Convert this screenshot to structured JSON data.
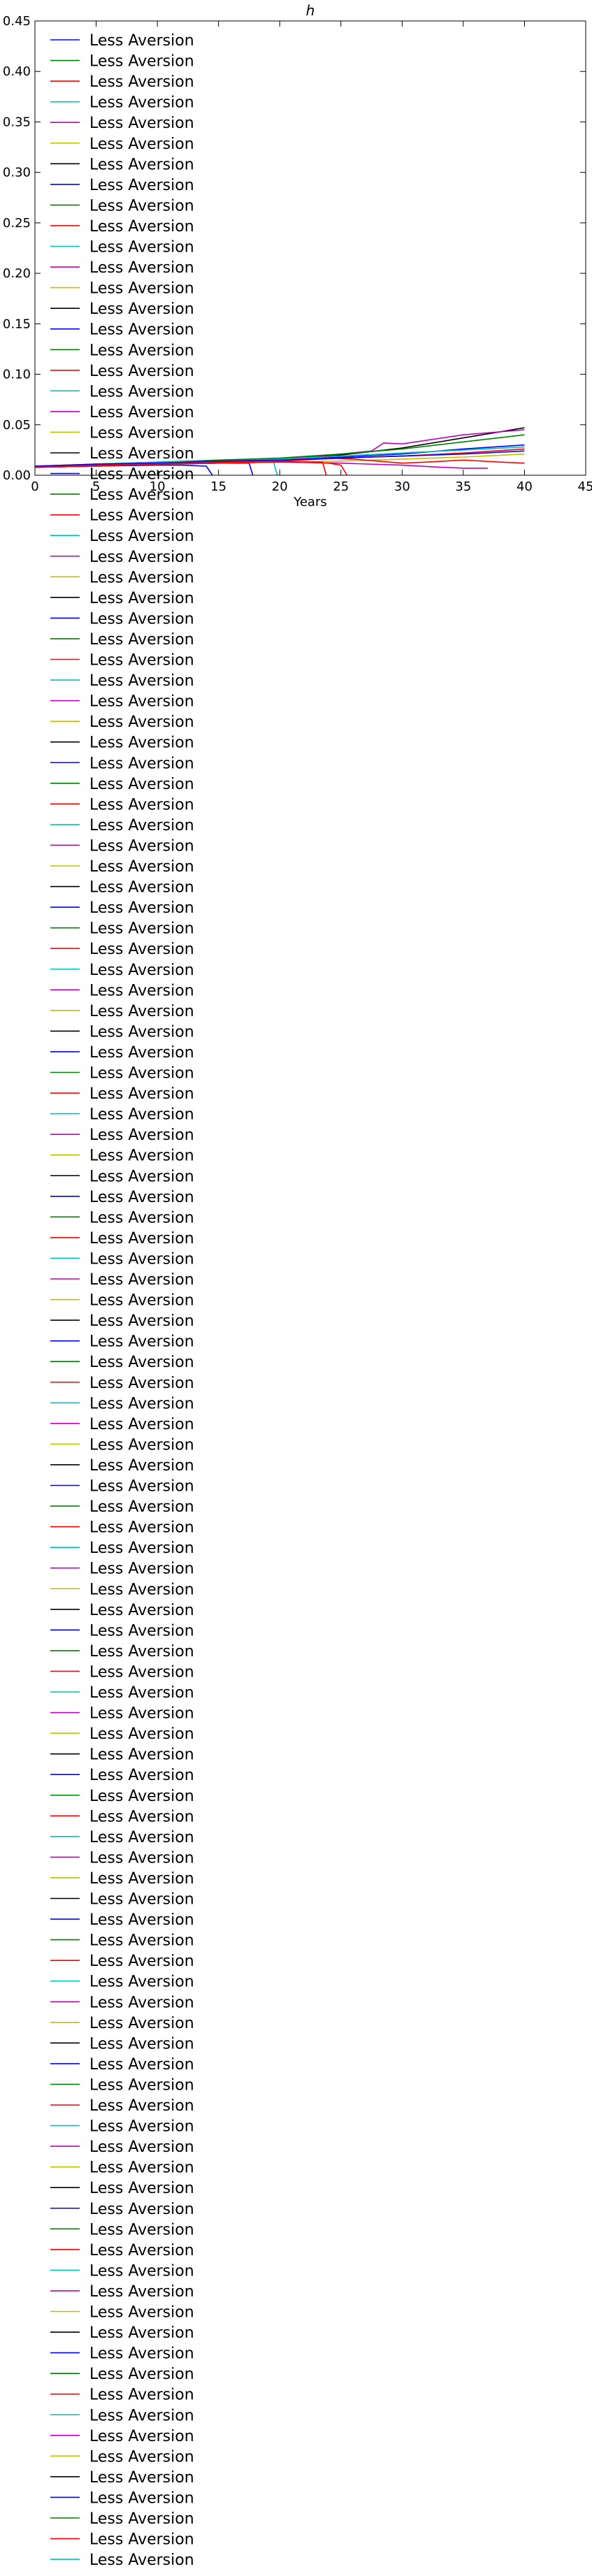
{
  "chart_data": {
    "type": "line",
    "title": "h",
    "xlabel": "Years",
    "ylabel": "",
    "xlim": [
      0,
      45
    ],
    "ylim": [
      0,
      0.45
    ],
    "xticks": [
      "0",
      "5",
      "10",
      "15",
      "20",
      "25",
      "30",
      "35",
      "40",
      "45"
    ],
    "yticks": [
      "0.00",
      "0.05",
      "0.10",
      "0.15",
      "0.20",
      "0.25",
      "0.30",
      "0.35",
      "0.40",
      "0.45"
    ],
    "grid": false,
    "legend_position": "upper-left",
    "legend_color_cycle": [
      "#0000ff",
      "#008000",
      "#ff0000",
      "#00bfbf",
      "#bf00bf",
      "#bfbf00",
      "#000000"
    ],
    "legend_entries": [
      "Less Aversion",
      "Less Aversion",
      "Less Aversion",
      "Less Aversion",
      "Less Aversion",
      "Less Aversion",
      "Less Aversion",
      "Less Aversion",
      "Less Aversion",
      "Less Aversion",
      "Less Aversion",
      "Less Aversion",
      "Less Aversion",
      "Less Aversion",
      "Less Aversion",
      "Less Aversion",
      "Less Aversion",
      "Less Aversion",
      "Less Aversion",
      "Less Aversion",
      "Less Aversion",
      "Less Aversion",
      "Less Aversion",
      "Less Aversion",
      "Less Aversion",
      "Less Aversion",
      "Less Aversion",
      "Less Aversion",
      "Less Aversion",
      "Less Aversion",
      "Less Aversion",
      "Less Aversion",
      "Less Aversion",
      "Less Aversion",
      "Less Aversion",
      "Less Aversion",
      "Less Aversion",
      "Less Aversion",
      "Less Aversion",
      "Less Aversion",
      "Less Aversion",
      "Less Aversion",
      "Less Aversion",
      "Less Aversion",
      "Less Aversion",
      "Less Aversion",
      "Less Aversion",
      "Less Aversion",
      "Less Aversion",
      "Less Aversion",
      "Less Aversion",
      "Less Aversion",
      "Less Aversion",
      "Less Aversion",
      "Less Aversion",
      "Less Aversion",
      "Less Aversion",
      "Less Aversion",
      "Less Aversion",
      "Less Aversion",
      "Less Aversion",
      "Less Aversion",
      "Less Aversion",
      "Less Aversion",
      "Less Aversion",
      "Less Aversion",
      "Less Aversion",
      "Less Aversion",
      "Less Aversion",
      "Less Aversion",
      "Less Aversion",
      "Less Aversion",
      "Less Aversion",
      "Less Aversion",
      "Less Aversion",
      "Less Aversion",
      "Less Aversion",
      "Less Aversion",
      "Less Aversion",
      "Less Aversion",
      "Less Aversion",
      "Less Aversion",
      "Less Aversion",
      "Less Aversion",
      "Less Aversion",
      "Less Aversion",
      "Less Aversion",
      "Less Aversion",
      "Less Aversion",
      "Less Aversion",
      "Less Aversion",
      "Less Aversion",
      "Less Aversion",
      "Less Aversion",
      "Less Aversion",
      "Less Aversion",
      "Less Aversion",
      "Less Aversion",
      "Less Aversion",
      "Less Aversion",
      "Less Aversion",
      "Less Aversion",
      "Less Aversion",
      "Less Aversion",
      "Less Aversion",
      "Less Aversion",
      "Less Aversion",
      "Less Aversion",
      "Less Aversion",
      "Less Aversion",
      "Less Aversion",
      "Less Aversion",
      "Less Aversion",
      "Less Aversion",
      "Less Aversion",
      "Less Aversion",
      "Less Aversion",
      "Less Aversion",
      "Less Aversion",
      "Less Aversion",
      "Less Aversion",
      "Less Aversion",
      "Less Aversion",
      "Less Aversion",
      "Less Aversion"
    ],
    "series": [
      {
        "color": "#000000",
        "x": [
          0,
          5,
          10,
          15,
          20,
          25,
          30,
          35,
          40
        ],
        "y": [
          0.008,
          0.01,
          0.012,
          0.014,
          0.016,
          0.02,
          0.027,
          0.037,
          0.047
        ]
      },
      {
        "color": "#bf00bf",
        "x": [
          0,
          5,
          10,
          15,
          20,
          25,
          27.5,
          28.5,
          30,
          35,
          40
        ],
        "y": [
          0.008,
          0.01,
          0.012,
          0.014,
          0.016,
          0.021,
          0.024,
          0.032,
          0.031,
          0.04,
          0.045
        ]
      },
      {
        "color": "#008000",
        "x": [
          0,
          5,
          10,
          15,
          20,
          25,
          30,
          35,
          40
        ],
        "y": [
          0.009,
          0.011,
          0.013,
          0.015,
          0.017,
          0.021,
          0.026,
          0.033,
          0.04
        ]
      },
      {
        "color": "#0000ff",
        "x": [
          0,
          5,
          10,
          15,
          20,
          25,
          30,
          35,
          40
        ],
        "y": [
          0.008,
          0.01,
          0.012,
          0.013,
          0.015,
          0.018,
          0.021,
          0.026,
          0.03
        ]
      },
      {
        "color": "#ff0000",
        "x": [
          0,
          5,
          10,
          15,
          20,
          25,
          30,
          35,
          40
        ],
        "y": [
          0.008,
          0.009,
          0.011,
          0.013,
          0.014,
          0.017,
          0.019,
          0.022,
          0.026
        ]
      },
      {
        "color": "#00bfbf",
        "x": [
          0,
          5,
          10,
          15,
          20,
          25,
          30,
          35,
          40
        ],
        "y": [
          0.009,
          0.011,
          0.013,
          0.014,
          0.016,
          0.019,
          0.022,
          0.025,
          0.028
        ]
      },
      {
        "color": "#bfbf00",
        "x": [
          0,
          5,
          10,
          15,
          20,
          25,
          30,
          35,
          40
        ],
        "y": [
          0.008,
          0.01,
          0.011,
          0.012,
          0.013,
          0.014,
          0.016,
          0.018,
          0.021
        ]
      },
      {
        "color": "#ff0000",
        "x": [
          0,
          5,
          10,
          15,
          20,
          22,
          24,
          26,
          28,
          30,
          32,
          35,
          38,
          40
        ],
        "y": [
          0.008,
          0.01,
          0.012,
          0.013,
          0.015,
          0.016,
          0.017,
          0.016,
          0.014,
          0.012,
          0.013,
          0.015,
          0.013,
          0.012
        ]
      },
      {
        "color": "#0000ff",
        "x": [
          0,
          5,
          10,
          15,
          20,
          25,
          30,
          35,
          40
        ],
        "y": [
          0.009,
          0.011,
          0.012,
          0.014,
          0.015,
          0.017,
          0.019,
          0.021,
          0.024
        ]
      },
      {
        "color": "#bf00bf",
        "x": [
          0,
          5,
          10,
          15,
          20,
          25,
          30,
          33,
          35,
          37
        ],
        "y": [
          0.008,
          0.009,
          0.011,
          0.012,
          0.013,
          0.012,
          0.01,
          0.008,
          0.007,
          0.007
        ]
      },
      {
        "color": "#ff0000",
        "x": [
          0,
          5,
          10,
          15,
          20,
          24,
          25,
          25.5
        ],
        "y": [
          0.008,
          0.01,
          0.011,
          0.013,
          0.014,
          0.012,
          0.01,
          0.0
        ]
      },
      {
        "color": "#0000ff",
        "x": [
          0,
          5,
          10,
          12,
          14,
          14.5
        ],
        "y": [
          0.008,
          0.009,
          0.01,
          0.01,
          0.009,
          0.0
        ]
      },
      {
        "color": "#0000ff",
        "x": [
          0,
          5,
          10,
          15,
          17.5,
          17.8
        ],
        "y": [
          0.008,
          0.009,
          0.011,
          0.012,
          0.012,
          0.0
        ]
      },
      {
        "color": "#00bfbf",
        "x": [
          0,
          5,
          10,
          15,
          19.5,
          19.8
        ],
        "y": [
          0.008,
          0.009,
          0.011,
          0.012,
          0.013,
          0.0
        ]
      },
      {
        "color": "#ff0000",
        "x": [
          0,
          5,
          10,
          15,
          20,
          23.5,
          23.8
        ],
        "y": [
          0.008,
          0.009,
          0.011,
          0.012,
          0.013,
          0.013,
          0.0
        ]
      }
    ]
  }
}
